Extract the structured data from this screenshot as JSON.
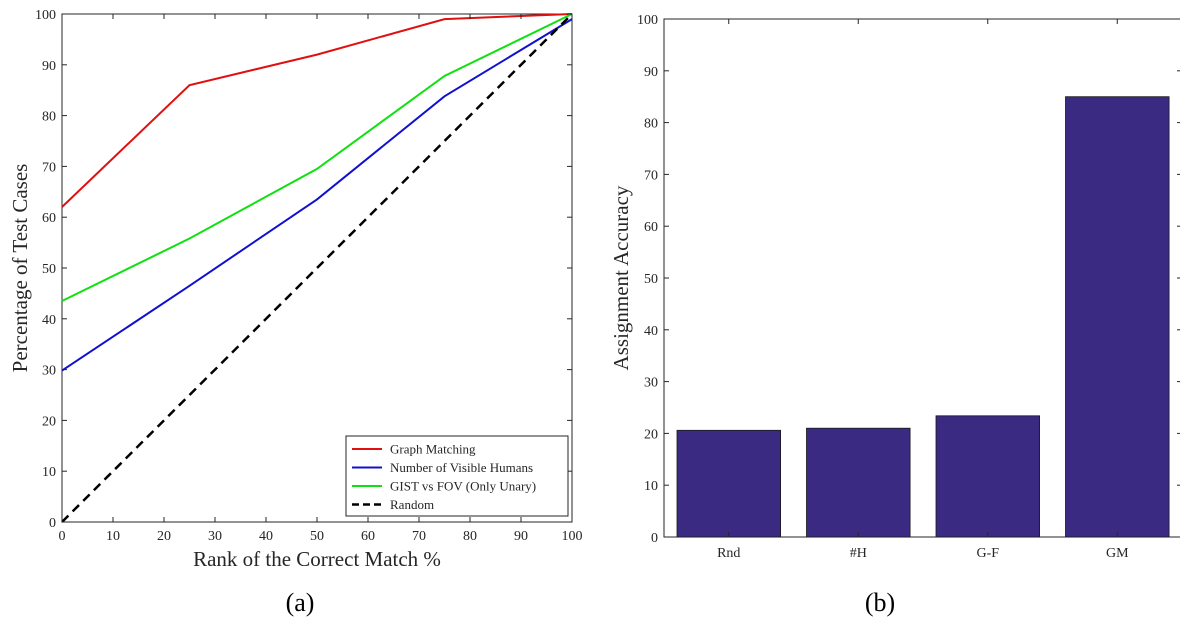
{
  "chart_data": [
    {
      "type": "line",
      "caption": "(a)",
      "xlabel": "Rank of the Correct Match %",
      "ylabel": "Percentage of Test Cases",
      "xlim": [
        0,
        100
      ],
      "ylim": [
        0,
        100
      ],
      "xticks": [
        0,
        10,
        20,
        30,
        40,
        50,
        60,
        70,
        80,
        90,
        100
      ],
      "yticks": [
        0,
        10,
        20,
        30,
        40,
        50,
        60,
        70,
        80,
        90,
        100
      ],
      "grid": false,
      "legend_position": "bottom-right",
      "series": [
        {
          "name": "Graph Matching",
          "color": "#e01010",
          "dash": "solid",
          "x": [
            0,
            25,
            50,
            75,
            100
          ],
          "y": [
            62,
            86,
            92,
            99,
            100
          ]
        },
        {
          "name": "Number of Visible Humans",
          "color": "#1010d0",
          "dash": "solid",
          "x": [
            0,
            25,
            50,
            75,
            100
          ],
          "y": [
            29.8,
            46.5,
            63.5,
            83.8,
            99
          ]
        },
        {
          "name": "GIST vs FOV (Only Unary)",
          "color": "#10e010",
          "dash": "solid",
          "x": [
            0,
            25,
            50,
            75,
            100
          ],
          "y": [
            43.5,
            55.8,
            69.5,
            87.8,
            100
          ]
        },
        {
          "name": "Random",
          "color": "#000000",
          "dash": "dashed",
          "x": [
            0,
            100
          ],
          "y": [
            0,
            100
          ]
        }
      ]
    },
    {
      "type": "bar",
      "caption": "(b)",
      "xlabel": "",
      "ylabel": "Assignment Accuracy",
      "ylim": [
        0,
        100
      ],
      "yticks": [
        0,
        10,
        20,
        30,
        40,
        50,
        60,
        70,
        80,
        90,
        100
      ],
      "grid": false,
      "bar_color": "#3a2a82",
      "categories": [
        "Rnd",
        "#H",
        "G-F",
        "GM"
      ],
      "values": [
        20.6,
        21.0,
        23.4,
        85.0
      ]
    }
  ]
}
